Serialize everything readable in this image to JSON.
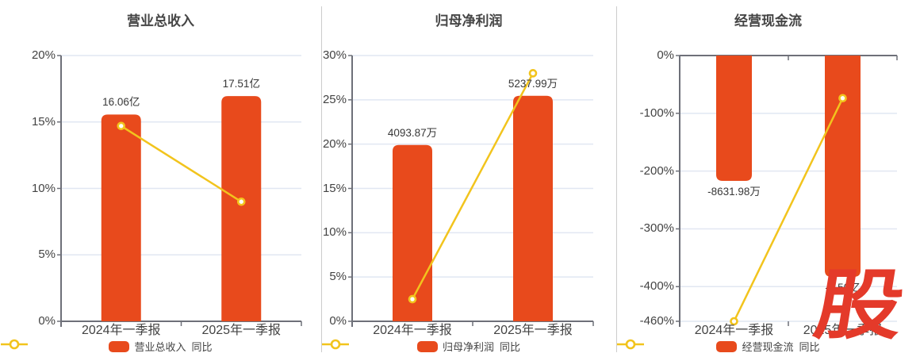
{
  "watermark": {
    "text": "股"
  },
  "colors": {
    "background": "#ffffff",
    "bar": "#e84a1c",
    "line": "#f2c41d",
    "marker_fill": "#ffffff",
    "grid": "#e1e7f2",
    "axis": "#6e7079",
    "tick_label": "#434343",
    "data_label": "#383838",
    "title": "#454545",
    "legend_text": "#444444",
    "divider": "#cccccc",
    "watermark": "#e43a2a"
  },
  "chart_data": [
    {
      "type": "bar+line",
      "title": "营业总收入",
      "categories": [
        "2024年一季报",
        "2025年一季报"
      ],
      "bar_series": {
        "name": "营业总收入",
        "labels": [
          "16.06亿",
          "17.51亿"
        ],
        "values": [
          16.06,
          17.51
        ],
        "unit": "亿",
        "plotted_axis_values": [
          15.56,
          16.95
        ]
      },
      "line_series": {
        "name": "同比",
        "values_pct": [
          14.7,
          9.0
        ]
      },
      "y_axis": {
        "min": 0,
        "max": 20,
        "ticks": [
          20,
          15,
          10,
          5,
          0
        ],
        "tick_labels": [
          "20%",
          "15%",
          "10%",
          "5%",
          "0%"
        ]
      },
      "legend": [
        "营业总收入",
        "同比"
      ]
    },
    {
      "type": "bar+line",
      "title": "归母净利润",
      "categories": [
        "2024年一季报",
        "2025年一季报"
      ],
      "bar_series": {
        "name": "归母净利润",
        "labels": [
          "4093.87万",
          "5237.99万"
        ],
        "values": [
          4093.87,
          5237.99
        ],
        "unit": "万",
        "plotted_axis_values": [
          19.9,
          25.45
        ]
      },
      "line_series": {
        "name": "同比",
        "values_pct": [
          2.5,
          28.0
        ]
      },
      "y_axis": {
        "min": 0,
        "max": 30,
        "ticks": [
          30,
          25,
          20,
          15,
          10,
          5,
          0
        ],
        "tick_labels": [
          "30%",
          "25%",
          "20%",
          "15%",
          "10%",
          "5%",
          "0%"
        ]
      },
      "legend": [
        "归母净利润",
        "同比"
      ]
    },
    {
      "type": "bar+line",
      "title": "经营现金流",
      "categories": [
        "2024年一季报",
        "2025年一季报"
      ],
      "bar_series": {
        "name": "经营现金流",
        "labels": [
          "-8631.98万",
          "-1.50亿"
        ],
        "values": [
          -8631.98,
          -15000
        ],
        "unit": "万",
        "plotted_axis_values": [
          -217,
          -383
        ]
      },
      "line_series": {
        "name": "同比",
        "values_pct": [
          -460,
          -73.8
        ]
      },
      "y_axis": {
        "min": -460,
        "max": 0,
        "ticks": [
          0,
          -100,
          -200,
          -300,
          -400,
          -460
        ],
        "tick_labels": [
          "0%",
          "-100%",
          "-200%",
          "-300%",
          "-400%",
          "-460%"
        ]
      },
      "legend": [
        "经营现金流",
        "同比"
      ]
    }
  ]
}
